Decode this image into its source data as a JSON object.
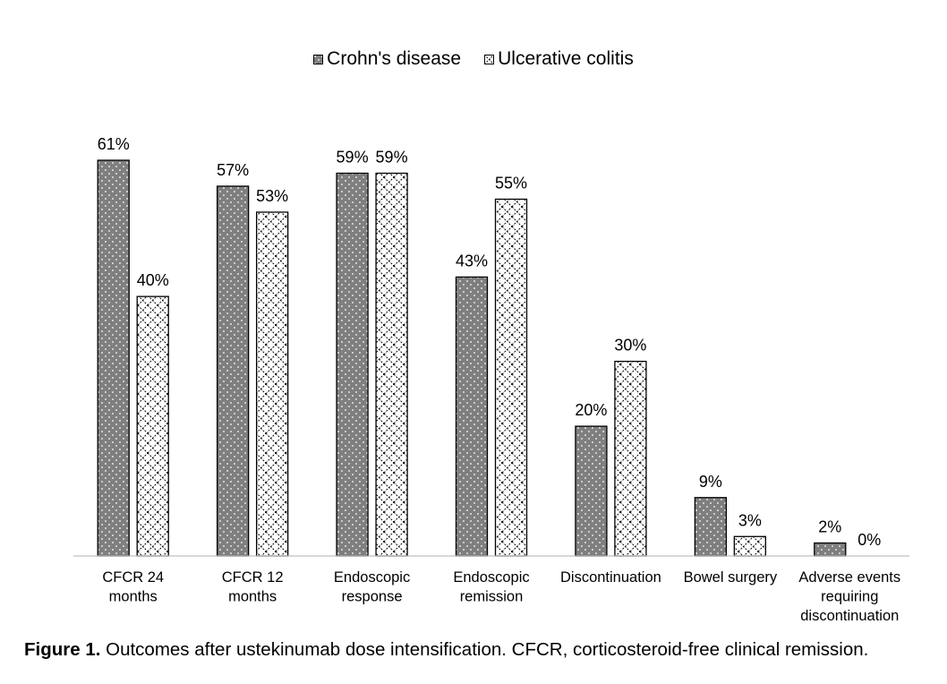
{
  "chart_data": {
    "type": "bar",
    "categories": [
      [
        "CFCR 24",
        "months"
      ],
      [
        "CFCR 12",
        "months"
      ],
      [
        "Endoscopic",
        "response"
      ],
      [
        "Endoscopic",
        "remission"
      ],
      [
        "Discontinuation"
      ],
      [
        "Bowel surgery"
      ],
      [
        "Adverse events",
        "requiring",
        "discontinuation"
      ]
    ],
    "series": [
      {
        "name": "Crohn's disease",
        "values": [
          61,
          57,
          59,
          43,
          20,
          9,
          2
        ],
        "labels": [
          "61%",
          "57%",
          "59%",
          "43%",
          "20%",
          "9%",
          "2%"
        ]
      },
      {
        "name": "Ulcerative colitis",
        "values": [
          40,
          53,
          59,
          55,
          30,
          3,
          0
        ],
        "labels": [
          "40%",
          "53%",
          "59%",
          "55%",
          "30%",
          "3%",
          "0%"
        ]
      }
    ],
    "ylim": [
      0,
      61
    ],
    "grid": false,
    "legend": "top-center"
  },
  "caption": {
    "label": "Figure 1.",
    "text": " Outcomes after ustekinumab dose intensification. CFCR, corticosteroid-free clinical remission."
  },
  "colors": {
    "crohns_fill": "#7f7f7f",
    "uc_fill": "#ffffff",
    "outline": "#000000"
  }
}
